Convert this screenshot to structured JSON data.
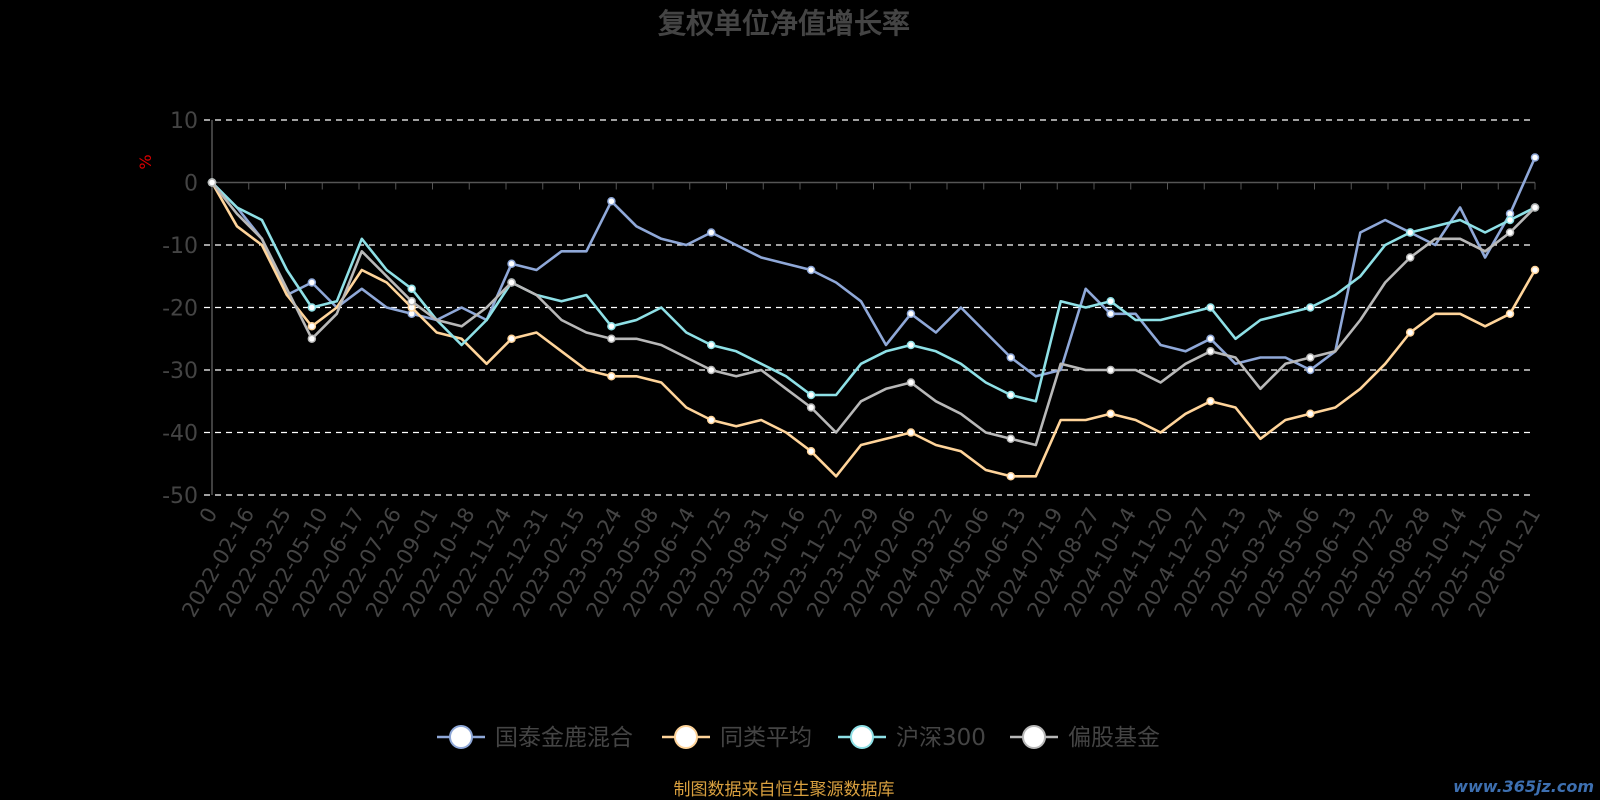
{
  "chart_data": {
    "type": "line",
    "title": "复权单位净值增长率",
    "ylabel": "%",
    "ylim": [
      -50,
      10
    ],
    "yticks": [
      10,
      0,
      -10,
      -20,
      -30,
      -40,
      -50
    ],
    "xticks": [
      "0",
      "2022-02-16",
      "2022-03-25",
      "2022-05-10",
      "2022-06-17",
      "2022-07-26",
      "2022-09-01",
      "2022-10-18",
      "2022-11-24",
      "2022-12-31",
      "2023-02-15",
      "2023-03-24",
      "2023-05-08",
      "2023-06-14",
      "2023-07-25",
      "2023-08-31",
      "2023-10-16",
      "2023-11-22",
      "2023-12-29",
      "2024-02-06",
      "2024-03-22",
      "2024-05-06",
      "2024-06-13",
      "2024-07-19",
      "2024-08-27",
      "2024-10-14",
      "2024-11-20",
      "2024-12-27",
      "2025-02-13",
      "2025-03-24",
      "2025-05-06",
      "2025-06-13",
      "2025-07-22",
      "2025-08-28",
      "2025-10-14",
      "2025-11-20",
      "2026-01-21"
    ],
    "grid": "dashed-horizontal",
    "legend_position": "bottom-center",
    "series": [
      {
        "name": "国泰金鹿混合",
        "color": "#8fa8d8",
        "values": [
          0,
          -4,
          -9,
          -18,
          -16,
          -20,
          -17,
          -20,
          -21,
          -22,
          -20,
          -22,
          -13,
          -14,
          -11,
          -11,
          -3,
          -7,
          -9,
          -10,
          -8,
          -10,
          -12,
          -13,
          -14,
          -16,
          -19,
          -26,
          -21,
          -24,
          -20,
          -24,
          -28,
          -31,
          -30,
          -17,
          -21,
          -21,
          -26,
          -27,
          -25,
          -29,
          -28,
          -28,
          -30,
          -27,
          -8,
          -6,
          -8,
          -10,
          -4,
          -12,
          -5,
          4
        ]
      },
      {
        "name": "同类平均",
        "color": "#ffd49a",
        "values": [
          0,
          -7,
          -10,
          -18,
          -23,
          -20,
          -14,
          -16,
          -20,
          -24,
          -25,
          -29,
          -25,
          -24,
          -27,
          -30,
          -31,
          -31,
          -32,
          -36,
          -38,
          -39,
          -38,
          -40,
          -43,
          -47,
          -42,
          -41,
          -40,
          -42,
          -43,
          -46,
          -47,
          -47,
          -38,
          -38,
          -37,
          -38,
          -40,
          -37,
          -35,
          -36,
          -41,
          -38,
          -37,
          -36,
          -33,
          -29,
          -24,
          -21,
          -21,
          -23,
          -21,
          -14
        ]
      },
      {
        "name": "沪深300",
        "color": "#8ee0e6",
        "values": [
          0,
          -4,
          -6,
          -14,
          -20,
          -19,
          -9,
          -14,
          -17,
          -22,
          -26,
          -22,
          -16,
          -18,
          -19,
          -18,
          -23,
          -22,
          -20,
          -24,
          -26,
          -27,
          -29,
          -31,
          -34,
          -34,
          -29,
          -27,
          -26,
          -27,
          -29,
          -32,
          -34,
          -35,
          -19,
          -20,
          -19,
          -22,
          -22,
          -21,
          -20,
          -25,
          -22,
          -21,
          -20,
          -18,
          -15,
          -10,
          -8,
          -7,
          -6,
          -8,
          -6,
          -4
        ]
      },
      {
        "name": "偏股基金",
        "color": "#b8b8b8",
        "values": [
          0,
          -5,
          -9,
          -17,
          -25,
          -21,
          -11,
          -15,
          -19,
          -22,
          -23,
          -20,
          -16,
          -18,
          -22,
          -24,
          -25,
          -25,
          -26,
          -28,
          -30,
          -31,
          -30,
          -33,
          -36,
          -40,
          -35,
          -33,
          -32,
          -35,
          -37,
          -40,
          -41,
          -42,
          -29,
          -30,
          -30,
          -30,
          -32,
          -29,
          -27,
          -28,
          -33,
          -29,
          -28,
          -27,
          -22,
          -16,
          -12,
          -9,
          -9,
          -11,
          -8,
          -4
        ]
      }
    ]
  },
  "source_note": "制图数据来自恒生聚源数据库",
  "watermark": "www.365jz.com"
}
